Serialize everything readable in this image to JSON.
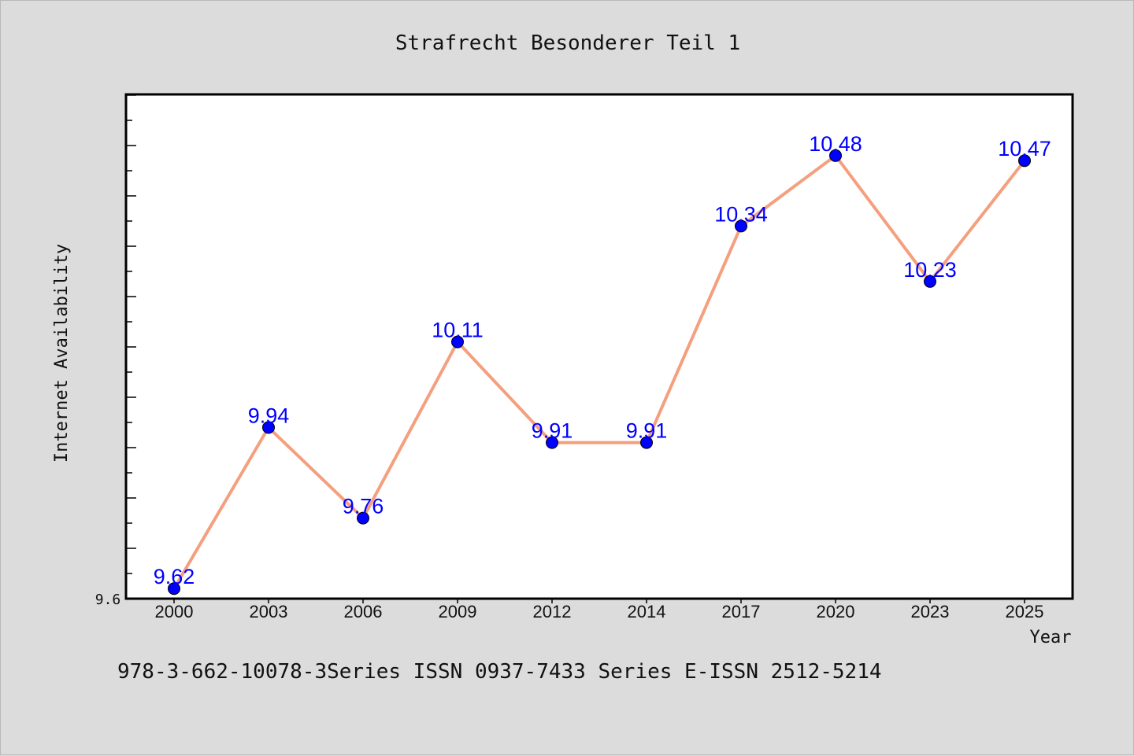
{
  "chart_data": {
    "type": "line",
    "title": "Strafrecht Besonderer Teil 1",
    "xlabel": "Year",
    "ylabel": "Internet Availability",
    "categories": [
      "2000",
      "2003",
      "2006",
      "2009",
      "2012",
      "2014",
      "2017",
      "2020",
      "2023",
      "2025"
    ],
    "values": [
      9.62,
      9.94,
      9.76,
      10.11,
      9.91,
      9.91,
      10.34,
      10.48,
      10.23,
      10.47
    ],
    "data_labels": [
      "9.62",
      "9.94",
      "9.76",
      "10.11",
      "9.91",
      "9.91",
      "10.34",
      "10.48",
      "10.23",
      "10.47"
    ],
    "ylim": [
      9.6,
      10.6
    ],
    "yticks_labeled": [
      "9.6"
    ],
    "grid": false,
    "legend": "none",
    "colors": {
      "line": "#f4a07e",
      "marker": "#0000ff",
      "data_label": "#0000ff",
      "background": "#dcdcdc",
      "plot_area": "#ffffff"
    }
  },
  "footer_text": "978-3-662-10078-3Series ISSN 0937-7433 Series E-ISSN 2512-5214"
}
